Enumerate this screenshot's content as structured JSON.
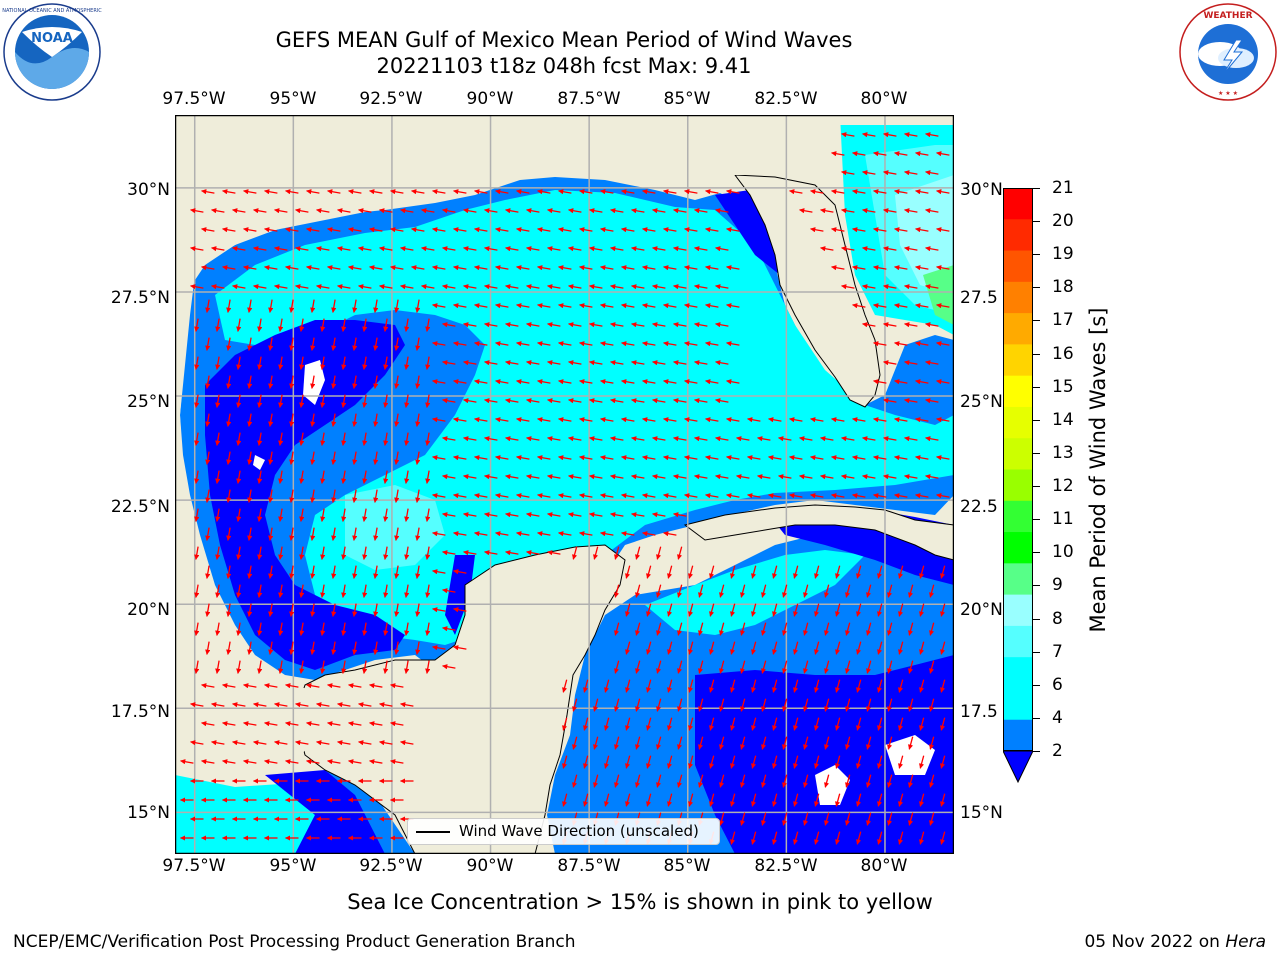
{
  "header": {
    "title_line1": "GEFS MEAN Gulf of Mexico Mean Period of Wind Waves",
    "title_line2": "20221103 t18z 048h fcst   Max: 9.41"
  },
  "logos": {
    "left": {
      "name": "NOAA",
      "ring_text": "NATIONAL OCEANIC AND ATMOSPHERIC ADMINISTRATION · U.S. DEPARTMENT OF COMMERCE"
    },
    "right": {
      "name": "NATIONAL WEATHER SERVICE"
    }
  },
  "map": {
    "lon_ticks": [
      "97.5°W",
      "95°W",
      "92.5°W",
      "90°W",
      "87.5°W",
      "85°W",
      "82.5°W",
      "80°W"
    ],
    "lat_ticks_left": [
      "30°N",
      "27.5°N",
      "25°N",
      "22.5°N",
      "20°N",
      "17.5°N",
      "15°N"
    ],
    "lat_ticks_right": [
      "30°N",
      "27.5",
      "25°N",
      "22.5",
      "20°N",
      "17.5",
      "15°N"
    ],
    "extent": {
      "lon_min": -98,
      "lon_max": -78.25,
      "lat_min": 14,
      "lat_max": 31.75
    },
    "land_color": "#efedda",
    "arrow_color": "#ff0000",
    "legend_label": "Wind Wave Direction (unscaled)"
  },
  "colorbar": {
    "ticks": [
      "21",
      "20",
      "19",
      "18",
      "17",
      "16",
      "15",
      "14",
      "13",
      "12",
      "11",
      "10",
      "9",
      "8",
      "7",
      "6",
      "4",
      "2"
    ],
    "colors": [
      "#ff0000",
      "#ff2a00",
      "#ff5500",
      "#ff8000",
      "#ffaa00",
      "#ffd400",
      "#ffff00",
      "#e6ff00",
      "#ccff00",
      "#99ff00",
      "#33ff33",
      "#00ff00",
      "#57ff88",
      "#99ffff",
      "#55ffff",
      "#00ffff",
      "#00ffff",
      "#0080ff"
    ],
    "extend_color": "#0000ff",
    "label": "Mean Period of Wind Waves [s]"
  },
  "footer": {
    "sea_ice_note": "Sea Ice Concentration > 15% is shown in pink to yellow",
    "left": "NCEP/EMC/Verification Post Processing Product Generation Branch",
    "date": "05 Nov 2022 on",
    "host": "Hera"
  }
}
